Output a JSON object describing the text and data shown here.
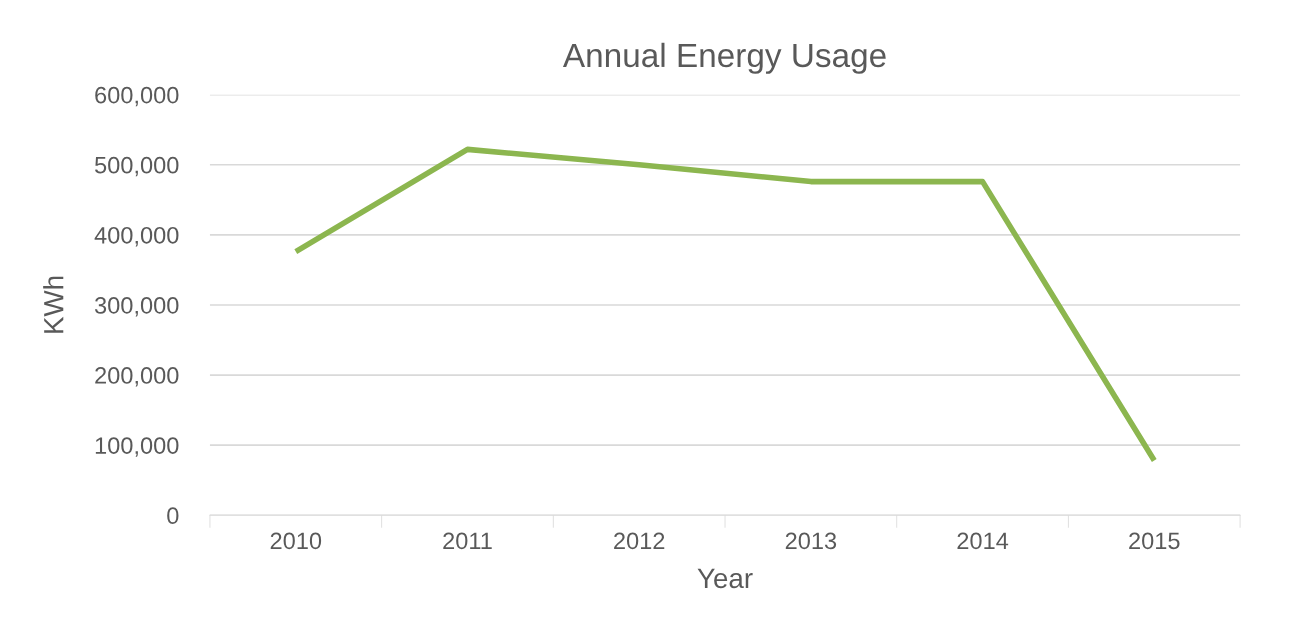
{
  "chart_data": {
    "type": "line",
    "title": "Annual Energy Usage",
    "xlabel": "Year",
    "ylabel": "KWh",
    "categories": [
      "2010",
      "2011",
      "2012",
      "2013",
      "2014",
      "2015"
    ],
    "series": [
      {
        "color": "#8cb64f",
        "values": [
          376000,
          522000,
          500000,
          476000,
          476000,
          78000
        ]
      }
    ],
    "ylim": [
      0,
      600000
    ],
    "yticks": [
      {
        "value": 0,
        "label": "0"
      },
      {
        "value": 100000,
        "label": "100,000"
      },
      {
        "value": 200000,
        "label": "200,000"
      },
      {
        "value": 300000,
        "label": "300,000"
      },
      {
        "value": 400000,
        "label": "400,000"
      },
      {
        "value": 500000,
        "label": "500,000"
      },
      {
        "value": 600000,
        "label": "600,000"
      }
    ],
    "grid": "y",
    "marker": "none",
    "line_style": "solid",
    "legend": false
  }
}
